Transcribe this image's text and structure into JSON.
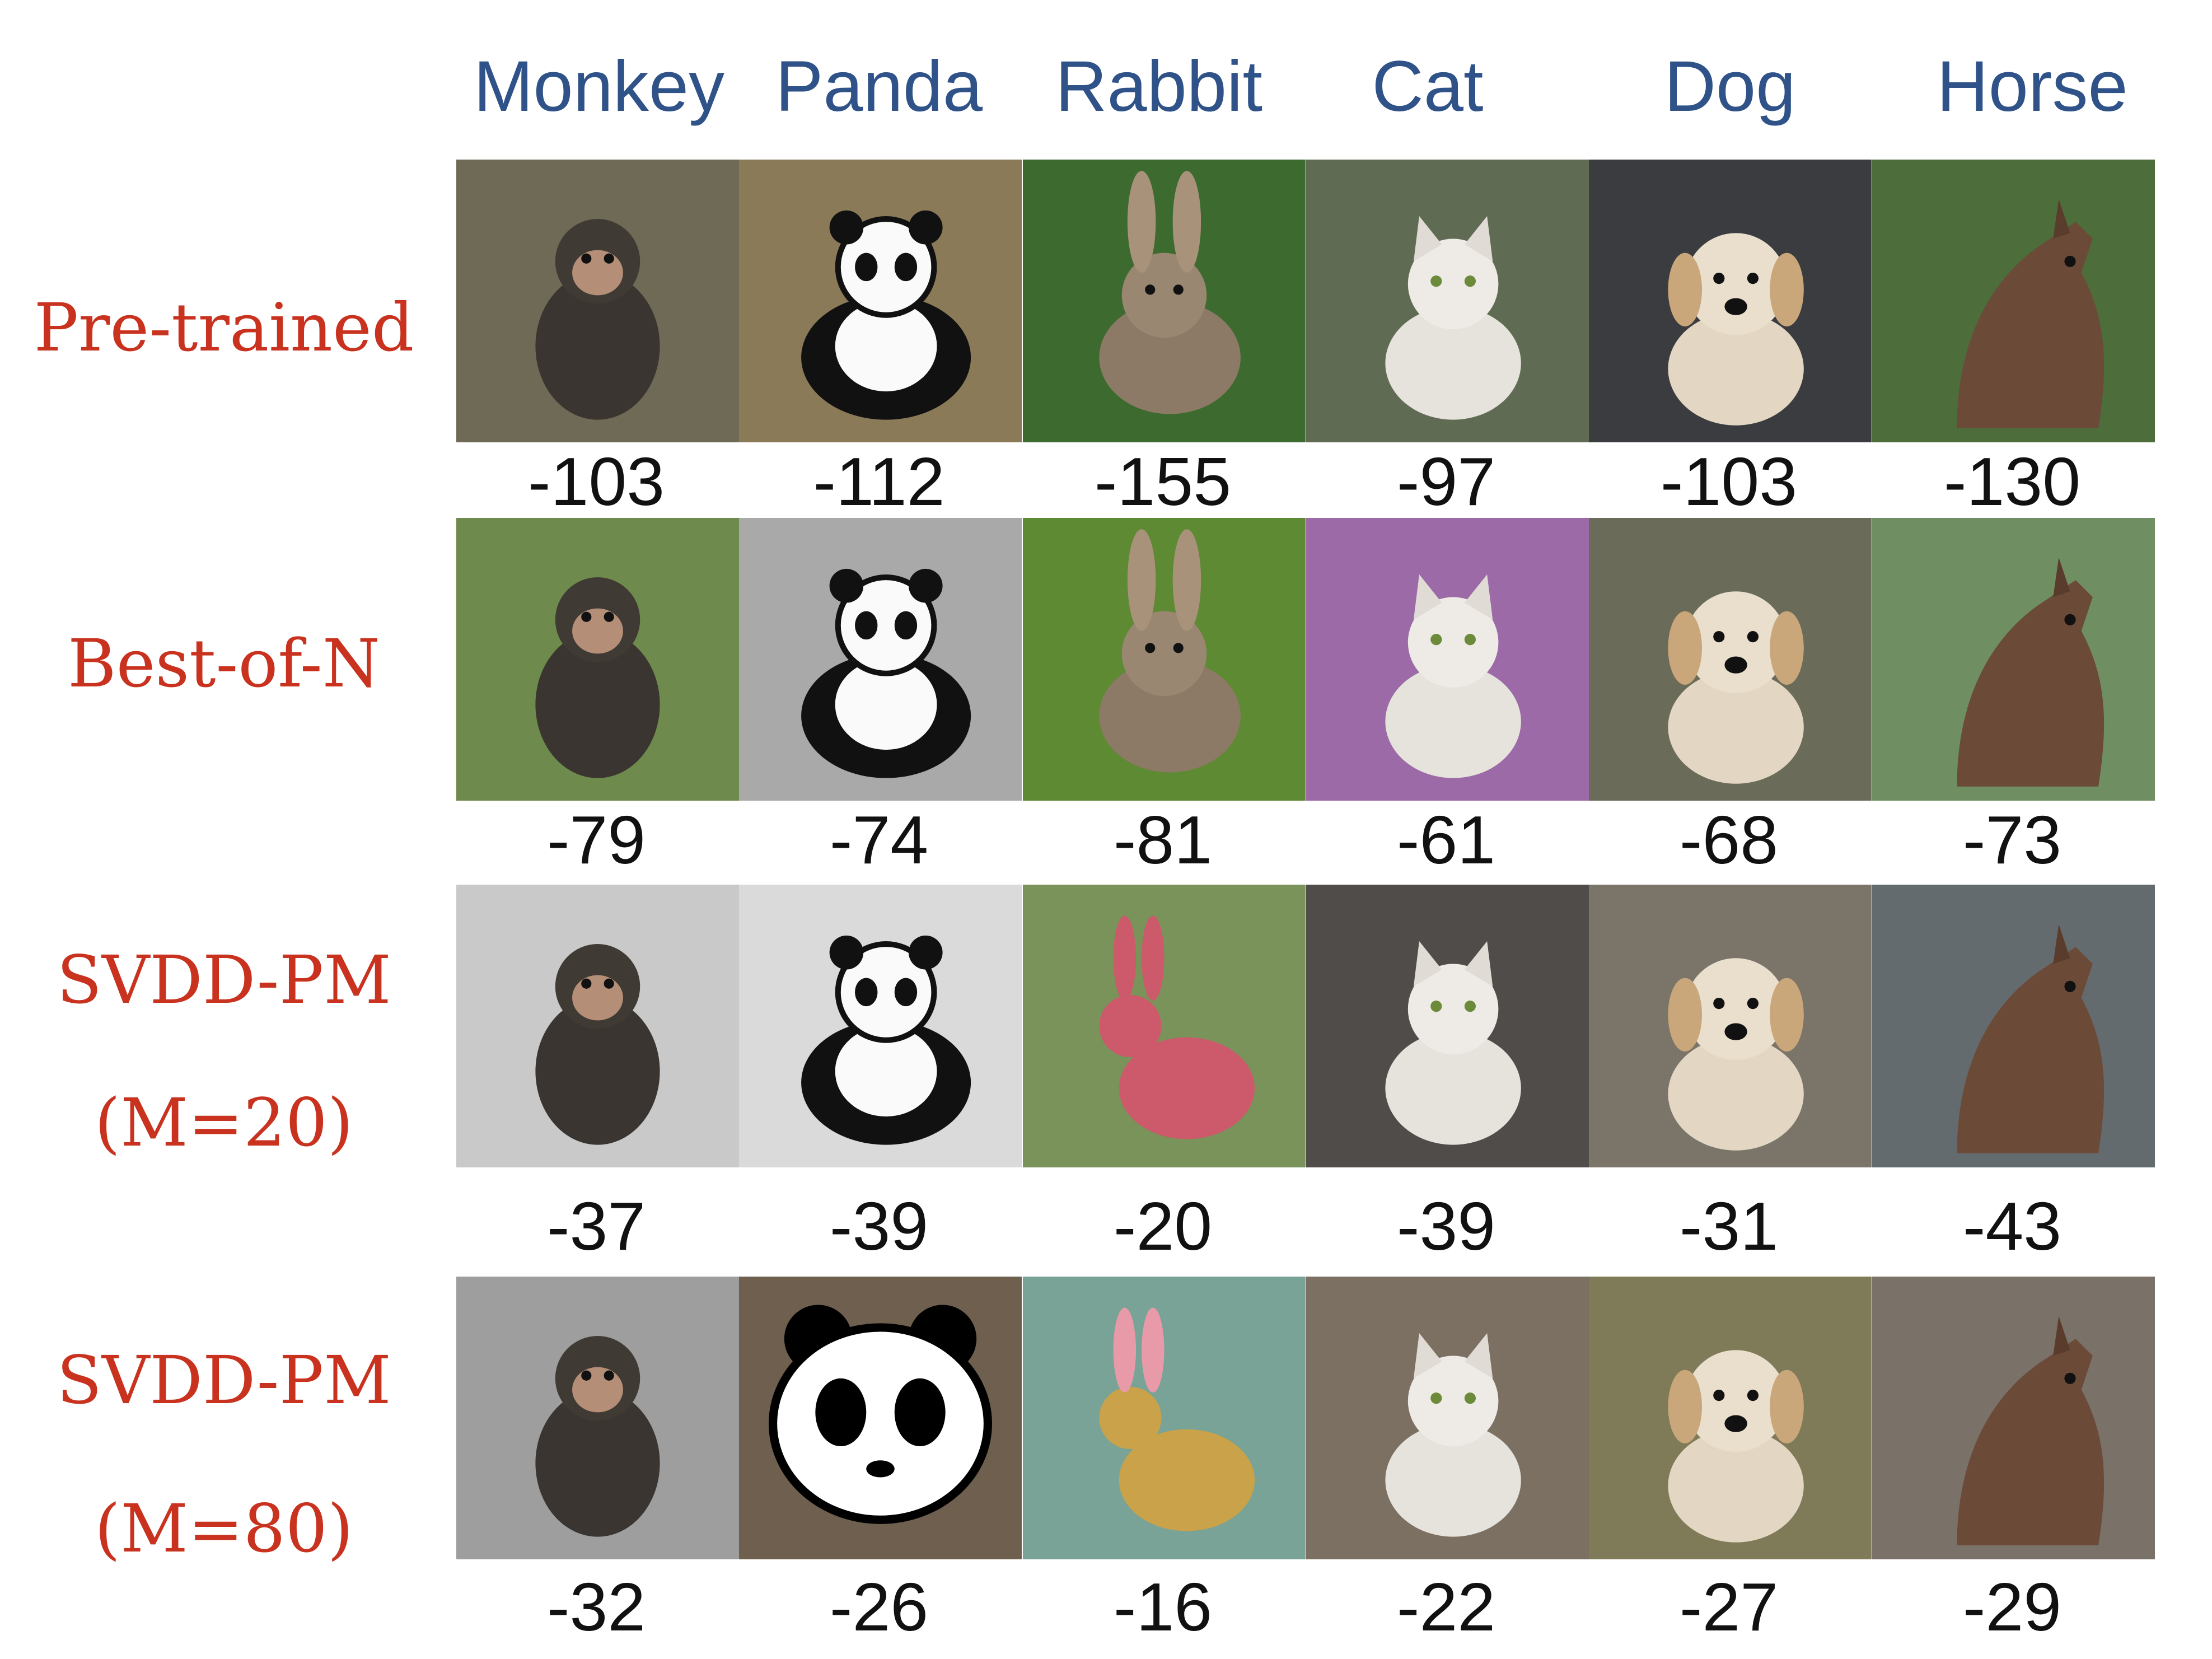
{
  "columns": [
    "Monkey",
    "Panda",
    "Rabbit",
    "Cat",
    "Dog",
    "Horse"
  ],
  "rows": [
    {
      "label": [
        "Pre-trained"
      ],
      "scores": [
        "-103",
        "-112",
        "-155",
        "-97",
        "-103",
        "-130"
      ]
    },
    {
      "label": [
        "Best-of-N"
      ],
      "scores": [
        "-79",
        "-74",
        "-81",
        "-61",
        "-68",
        "-73"
      ]
    },
    {
      "label": [
        "SVDD-PM",
        "(M=20)"
      ],
      "scores": [
        "-37",
        "-39",
        "-20",
        "-39",
        "-31",
        "-43"
      ]
    },
    {
      "label": [
        "SVDD-PM",
        "(M=80)"
      ],
      "scores": [
        "-32",
        "-26",
        "-16",
        "-22",
        "-27",
        "-29"
      ]
    }
  ],
  "tiles": [
    [
      {
        "icon": "monkey-photo-icon",
        "bg": "#6f6a55"
      },
      {
        "icon": "panda-photo-icon",
        "bg": "#8a7a58"
      },
      {
        "icon": "rabbit-photo-icon",
        "bg": "#3d6a2f"
      },
      {
        "icon": "cat-photo-icon",
        "bg": "#5f6b52"
      },
      {
        "icon": "dog-photo-icon",
        "bg": "#3b3c3f"
      },
      {
        "icon": "horse-photo-icon",
        "bg": "#4d6d3a"
      }
    ],
    [
      {
        "icon": "monkey-photo-icon",
        "bg": "#6e8a4c"
      },
      {
        "icon": "panda-photo-icon",
        "bg": "#a9a9a9"
      },
      {
        "icon": "rabbit-photo-icon",
        "bg": "#5f8a34"
      },
      {
        "icon": "cat-photo-icon",
        "bg": "#9b6aa7"
      },
      {
        "icon": "dog-photo-icon",
        "bg": "#6b6b5a"
      },
      {
        "icon": "horse-photo-icon",
        "bg": "#6f8f63"
      }
    ],
    [
      {
        "icon": "monkey-photo-icon",
        "bg": "#c9c9c9"
      },
      {
        "icon": "panda-photo-icon",
        "bg": "#dadada"
      },
      {
        "icon": "rabbit-silhouette-icon",
        "bg": "#79935a"
      },
      {
        "icon": "cat-photo-icon",
        "bg": "#4f4c4a"
      },
      {
        "icon": "dog-photo-icon",
        "bg": "#7a7469"
      },
      {
        "icon": "horse-photo-icon",
        "bg": "#646b6f"
      }
    ],
    [
      {
        "icon": "monkey-photo-icon",
        "bg": "#9e9e9e"
      },
      {
        "icon": "panda-face-icon",
        "bg": "#6f5f4f"
      },
      {
        "icon": "rabbit-silhouette-icon",
        "bg": "#79a397"
      },
      {
        "icon": "cat-photo-icon",
        "bg": "#7b7061"
      },
      {
        "icon": "dog-photo-icon",
        "bg": "#7f7a58"
      },
      {
        "icon": "horse-photo-icon",
        "bg": "#7a7169"
      }
    ]
  ]
}
